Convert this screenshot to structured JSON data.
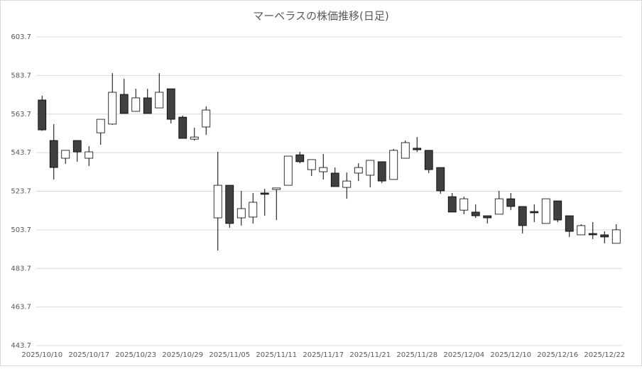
{
  "chart_data": {
    "type": "candlestick",
    "title": "マーベラスの株価推移(日足)",
    "categories": [
      "2025/10/10",
      null,
      null,
      null,
      "2025/10/17",
      null,
      null,
      null,
      "2025/10/23",
      null,
      null,
      null,
      "2025/10/29",
      null,
      null,
      null,
      "2025/11/05",
      null,
      null,
      null,
      "2025/11/11",
      null,
      null,
      null,
      "2025/11/17",
      null,
      null,
      null,
      "2025/11/21",
      null,
      null,
      null,
      "2025/11/28",
      null,
      null,
      null,
      "2025/12/04",
      null,
      null,
      null,
      "2025/12/10",
      null,
      null,
      null,
      "2025/12/16",
      null,
      null,
      null,
      "2025/12/22",
      null
    ],
    "open": [
      571.0,
      550.0,
      540.8,
      550.0,
      540.8,
      554.0,
      558.5,
      573.9,
      565.1,
      572.1,
      566.9,
      576.8,
      562.1,
      550.7,
      557.0,
      509.9,
      526.8,
      509.9,
      510.3,
      522.8,
      524.6,
      526.8,
      542.6,
      534.9,
      533.8,
      533.1,
      525.7,
      533.1,
      532.0,
      539.0,
      529.8,
      540.8,
      546.0,
      544.9,
      536.0,
      520.9,
      513.9,
      512.9,
      511.0,
      511.8,
      519.8,
      515.8,
      513.2,
      507.0,
      518.7,
      511.0,
      501.1,
      501.8,
      501.1,
      496.7
    ],
    "high": [
      573.2,
      558.5,
      545.0,
      550.0,
      547.1,
      561.0,
      584.9,
      582.0,
      576.8,
      576.8,
      584.9,
      576.8,
      562.9,
      556.6,
      567.7,
      544.1,
      526.8,
      523.9,
      522.8,
      525.0,
      525.4,
      541.9,
      544.1,
      540.1,
      543.0,
      536.0,
      533.4,
      538.2,
      539.7,
      539.0,
      545.6,
      550.0,
      551.8,
      544.9,
      536.0,
      522.8,
      520.9,
      516.9,
      511.0,
      523.9,
      522.8,
      515.8,
      516.9,
      519.8,
      518.7,
      511.0,
      506.6,
      507.7,
      502.9,
      506.6
    ],
    "low": [
      555.0,
      529.8,
      537.9,
      539.0,
      536.8,
      547.8,
      558.1,
      564.0,
      565.0,
      564.0,
      566.9,
      558.8,
      551.1,
      550.0,
      552.9,
      493.0,
      504.8,
      505.9,
      507.0,
      511.0,
      508.8,
      526.8,
      538.2,
      531.6,
      529.8,
      526.1,
      519.8,
      529.0,
      525.7,
      527.9,
      529.8,
      540.8,
      544.1,
      533.1,
      522.4,
      512.9,
      511.8,
      509.9,
      507.0,
      511.8,
      513.9,
      501.8,
      507.7,
      507.0,
      507.7,
      500.0,
      501.1,
      498.9,
      496.7,
      496.7
    ],
    "close": [
      555.5,
      536.0,
      544.9,
      544.1,
      544.1,
      561.0,
      575.0,
      564.0,
      572.1,
      564.0,
      575.0,
      561.0,
      551.1,
      551.8,
      565.8,
      526.8,
      507.0,
      514.7,
      518.0,
      522.1,
      525.4,
      541.9,
      539.0,
      540.1,
      536.0,
      526.1,
      529.0,
      536.0,
      539.7,
      529.0,
      544.9,
      548.9,
      545.2,
      534.9,
      523.9,
      512.9,
      519.8,
      511.0,
      509.9,
      519.8,
      515.8,
      505.9,
      512.5,
      519.8,
      508.8,
      502.9,
      505.9,
      501.1,
      500.0,
      503.7
    ],
    "up_color": "#ffffff",
    "down_color": "#404040",
    "ylim": [
      443.7,
      603.7
    ],
    "yticks": [
      443.7,
      463.7,
      483.7,
      503.7,
      523.7,
      543.7,
      563.7,
      583.7,
      603.7
    ],
    "grid": true
  }
}
